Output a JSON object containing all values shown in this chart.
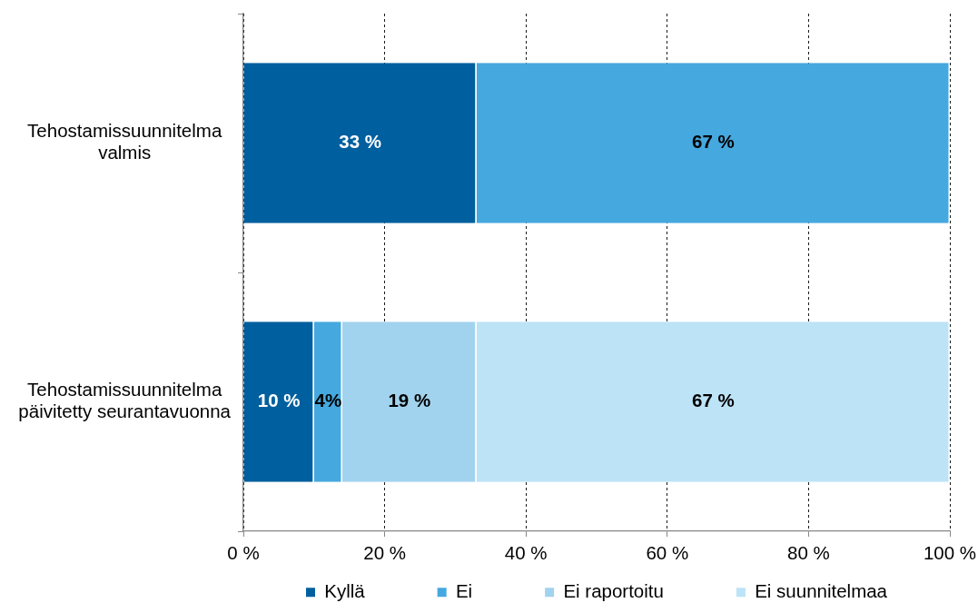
{
  "chart_data": {
    "type": "bar",
    "orientation": "horizontal",
    "stacked": true,
    "categories": [
      "Tehostamissuunnitelma valmis",
      "Tehostamissuunnitelma päivitetty seurantavuonna"
    ],
    "series": [
      {
        "name": "Kyllä",
        "color": "#005f9e",
        "values": [
          33,
          10
        ],
        "value_labels": [
          "33 %",
          "10 %"
        ]
      },
      {
        "name": "Ei",
        "color": "#45a8de",
        "values": [
          67,
          4
        ],
        "value_labels": [
          "67 %",
          "4%"
        ]
      },
      {
        "name": "Ei raportoitu",
        "color": "#a2d3ee",
        "values": [
          null,
          19
        ],
        "value_labels": [
          null,
          "19 %"
        ]
      },
      {
        "name": "Ei suunnitelmaa",
        "color": "#bde3f7",
        "values": [
          null,
          67
        ],
        "value_labels": [
          null,
          "67 %"
        ]
      }
    ],
    "xlim": [
      0,
      100
    ],
    "xticks": [
      {
        "value": 0,
        "label": "0 %"
      },
      {
        "value": 20,
        "label": "20 %"
      },
      {
        "value": 40,
        "label": "40 %"
      },
      {
        "value": 60,
        "label": "60 %"
      },
      {
        "value": 80,
        "label": "80 %"
      },
      {
        "value": 100,
        "label": "100 %"
      }
    ],
    "grid": "x",
    "legend": "bottom"
  }
}
